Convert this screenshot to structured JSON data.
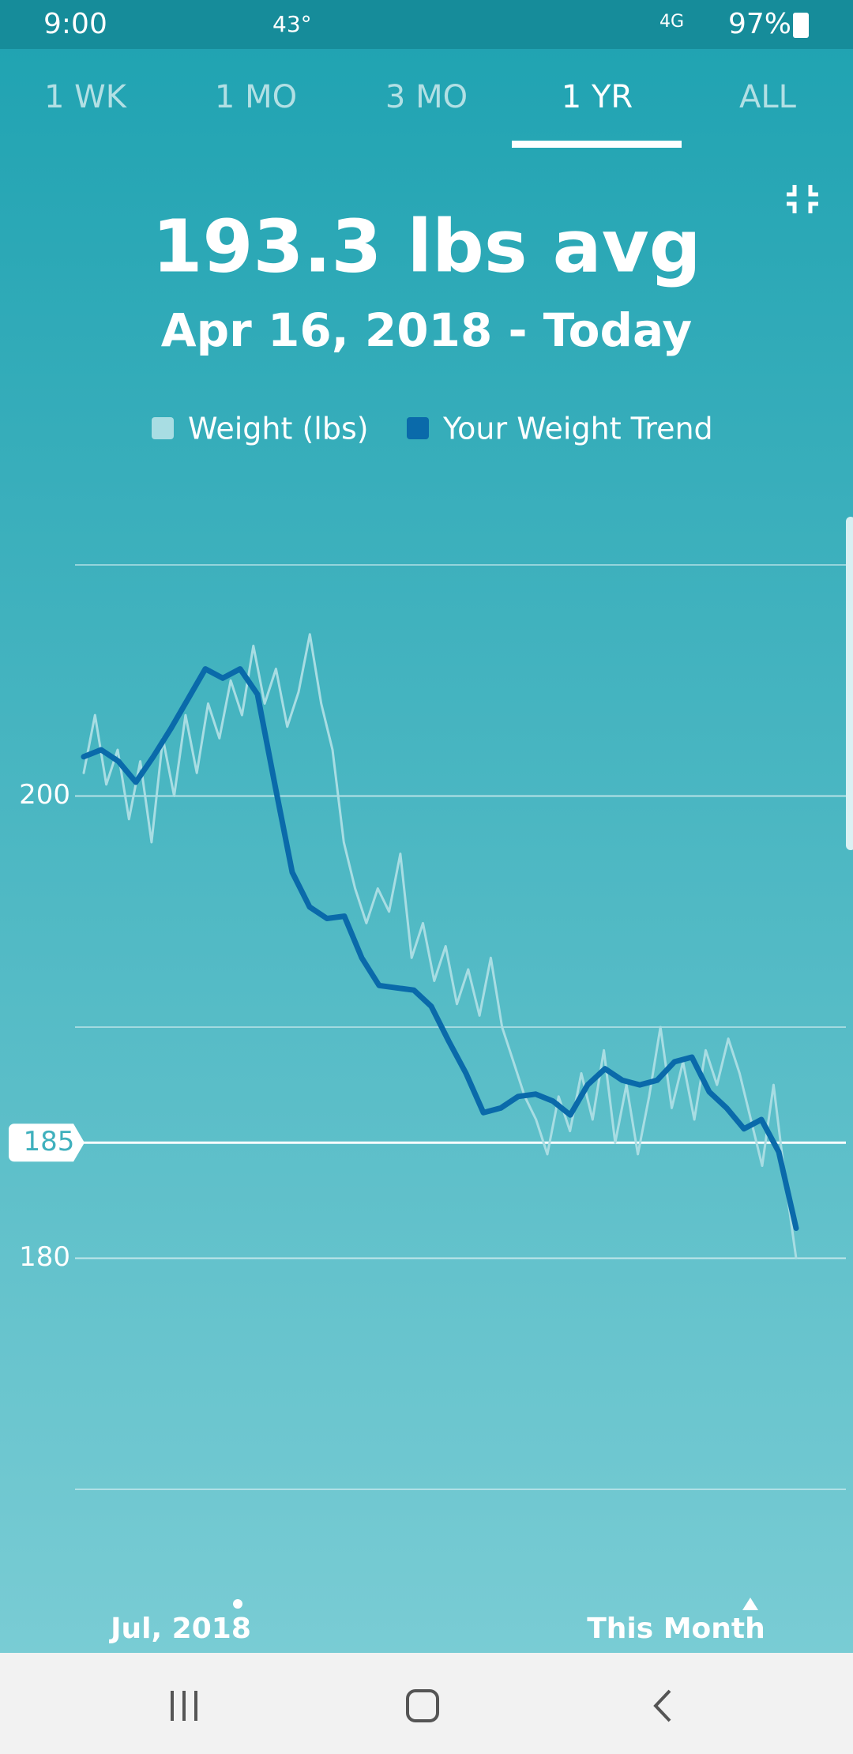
{
  "status_bar": {
    "time": "9:00",
    "temperature": "43°",
    "network": "4G",
    "battery": "97%"
  },
  "tabs": {
    "items": [
      "1 WK",
      "1 MO",
      "3 MO",
      "1 YR",
      "ALL"
    ],
    "selected": 3
  },
  "header": {
    "title": "193.3 lbs avg",
    "subtitle": "Apr 16, 2018 - Today"
  },
  "chart_data": {
    "type": "line",
    "series": [
      {
        "name": "Weight (lbs)",
        "color": "#a8dde3",
        "values": [
          201,
          203.5,
          200.5,
          202,
          199,
          201.5,
          198,
          202.5,
          200,
          203.5,
          201,
          204,
          202.5,
          205,
          203.5,
          206.5,
          204,
          205.5,
          203,
          204.5,
          207,
          204,
          202,
          198,
          196,
          194.5,
          196,
          195,
          197.5,
          193,
          194.5,
          192,
          193.5,
          191,
          192.5,
          190.5,
          193,
          190,
          188.5,
          187,
          186,
          184.5,
          187,
          185.5,
          188,
          186,
          189,
          185,
          187.5,
          184.5,
          187,
          190,
          186.5,
          188.5,
          186,
          189,
          187.5,
          189.5,
          188,
          186,
          184,
          187.5,
          183.5,
          180
        ]
      },
      {
        "name": "Your Weight Trend",
        "color": "#0a6aaa",
        "values": [
          201.7,
          202.0,
          201.5,
          200.6,
          201.7,
          202.9,
          204.2,
          205.5,
          205.1,
          205.5,
          204.4,
          200.5,
          196.7,
          195.2,
          194.7,
          194.8,
          193.0,
          191.8,
          191.7,
          191.6,
          190.9,
          189.4,
          188.0,
          186.3,
          186.5,
          187.0,
          187.1,
          186.8,
          186.2,
          187.5,
          188.2,
          187.7,
          187.5,
          187.7,
          188.5,
          188.7,
          187.2,
          186.5,
          185.6,
          186.0,
          184.6,
          181.3
        ]
      }
    ],
    "ylim": [
      170,
      210
    ],
    "yticks": [
      180,
      200
    ],
    "grid_values": [
      170,
      190,
      210
    ],
    "highlight_value": 185,
    "x_labels": [
      "Jul, 2018",
      "This Month"
    ]
  }
}
